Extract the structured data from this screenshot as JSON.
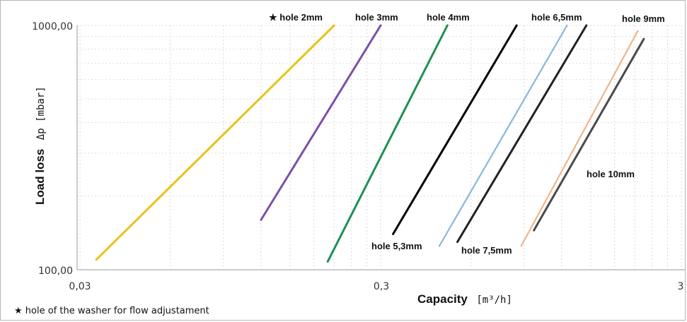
{
  "chart_data": {
    "type": "line",
    "x_scale": "log",
    "y_scale": "log",
    "xlabel": "Capacity",
    "xunit": "[m³/h]",
    "ylabel": "Load loss",
    "yunit": "Δp [mbar]",
    "xlim": [
      0.03,
      3
    ],
    "ylim": [
      100,
      1000
    ],
    "x_tick_labels": [
      "0,03",
      "0,3",
      "3"
    ],
    "y_tick_labels": [
      "100,00",
      "1000,00"
    ],
    "grid": true,
    "footnote": "★ hole of the washer for flow adjustament",
    "series": [
      {
        "name": "★ hole 2mm",
        "color": "#e9c21a",
        "x": [
          0.034,
          0.21
        ],
        "y": [
          110,
          1000
        ]
      },
      {
        "name": "hole 3mm",
        "color": "#7d4fa8",
        "x": [
          0.12,
          0.3
        ],
        "y": [
          160,
          1000
        ]
      },
      {
        "name": "hole 4mm",
        "color": "#1f8f57",
        "x": [
          0.2,
          0.5
        ],
        "y": [
          108,
          1000
        ]
      },
      {
        "name": "hole 5,3mm",
        "color": "#000000",
        "x": [
          0.33,
          0.85
        ],
        "y": [
          140,
          1000
        ]
      },
      {
        "name": "hole 6,5mm",
        "color": "#8ab6dc",
        "x": [
          0.47,
          1.25
        ],
        "y": [
          125,
          1000
        ]
      },
      {
        "name": "hole 7,5mm",
        "color": "#222222",
        "x": [
          0.54,
          1.45
        ],
        "y": [
          130,
          1000
        ]
      },
      {
        "name": "hole 9mm",
        "color": "#f0b48a",
        "x": [
          0.88,
          2.15
        ],
        "y": [
          125,
          950
        ]
      },
      {
        "name": "hole 10mm",
        "color": "#4a4a4a",
        "x": [
          0.97,
          2.25
        ],
        "y": [
          145,
          880
        ]
      }
    ]
  }
}
